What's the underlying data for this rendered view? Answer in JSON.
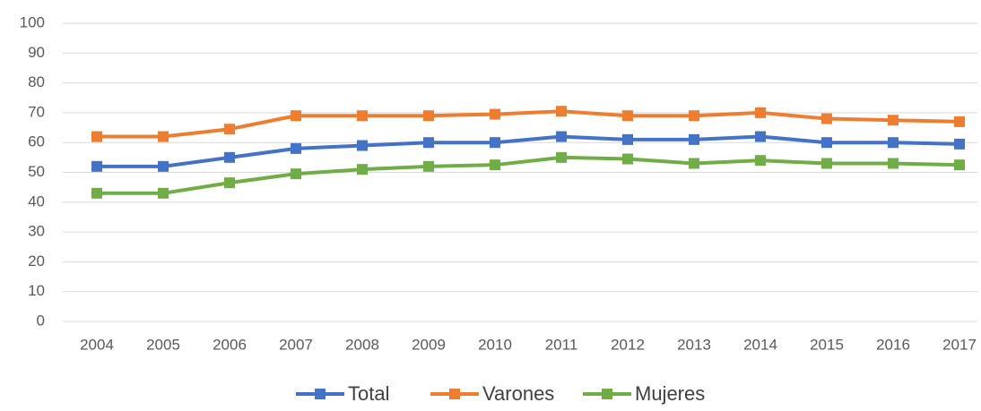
{
  "chart_data": {
    "type": "line",
    "categories": [
      "2004",
      "2005",
      "2006",
      "2007",
      "2008",
      "2009",
      "2010",
      "2011",
      "2012",
      "2013",
      "2014",
      "2015",
      "2016",
      "2017"
    ],
    "series": [
      {
        "name": "Total",
        "color": "#4472c4",
        "values": [
          52,
          52,
          55,
          58,
          59,
          60,
          60,
          62,
          61,
          61,
          62,
          60,
          60,
          59.5
        ]
      },
      {
        "name": "Varones",
        "color": "#ed7d31",
        "values": [
          62,
          62,
          64.5,
          69,
          69,
          69,
          69.5,
          70.5,
          69,
          69,
          70,
          68,
          67.5,
          67
        ]
      },
      {
        "name": "Mujeres",
        "color": "#70ad47",
        "values": [
          43,
          43,
          46.5,
          49.5,
          51,
          52,
          52.5,
          55,
          54.5,
          53,
          54,
          53,
          53,
          52.5
        ]
      }
    ],
    "ylim": [
      0,
      100
    ],
    "yticks": [
      0,
      10,
      20,
      30,
      40,
      50,
      60,
      70,
      80,
      90,
      100
    ],
    "grid": true,
    "legend": "bottom"
  }
}
